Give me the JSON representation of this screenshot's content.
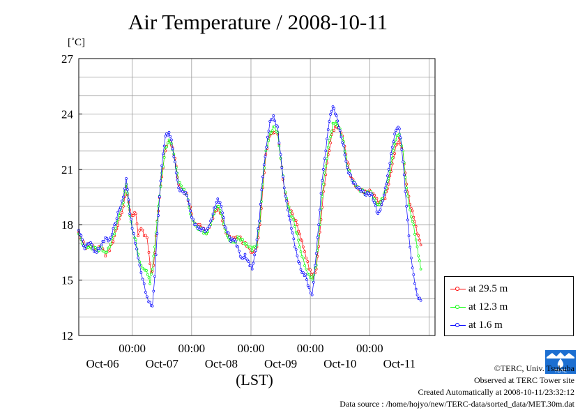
{
  "chart_data": {
    "type": "line",
    "title": "Air Temperature / 2008-10-11",
    "ylabel": "[˚C]",
    "xlabel": "(LST)",
    "ylim": [
      12,
      27
    ],
    "y_ticks": [
      12,
      15,
      18,
      21,
      24,
      27
    ],
    "x_unit": "days since Oct-06 00:00 (local)",
    "xlim": [
      -0.9,
      5.1
    ],
    "x_ticks": [
      {
        "x": 0,
        "time": "00:00",
        "date": "Oct-06"
      },
      {
        "x": 1,
        "time": "00:00",
        "date": "Oct-07"
      },
      {
        "x": 2,
        "time": "00:00",
        "date": "Oct-08"
      },
      {
        "x": 3,
        "time": "00:00",
        "date": "Oct-09"
      },
      {
        "x": 4,
        "time": "00:00",
        "date": "Oct-10"
      },
      {
        "x": 5,
        "time": "",
        "date": "Oct-11"
      }
    ],
    "grid": true,
    "legend_position": "right",
    "series": [
      {
        "name": "at 29.5 m",
        "color": "#ff0000",
        "points": [
          [
            -0.9,
            17.6
          ],
          [
            -0.8,
            16.8
          ],
          [
            -0.72,
            16.9
          ],
          [
            -0.6,
            16.6
          ],
          [
            -0.52,
            16.8
          ],
          [
            -0.45,
            16.3
          ],
          [
            -0.38,
            16.6
          ],
          [
            -0.3,
            17.4
          ],
          [
            -0.22,
            18.3
          ],
          [
            -0.15,
            19.0
          ],
          [
            -0.1,
            20.2
          ],
          [
            -0.04,
            18.8
          ],
          [
            0.0,
            18.5
          ],
          [
            0.06,
            18.6
          ],
          [
            0.1,
            17.4
          ],
          [
            0.15,
            17.8
          ],
          [
            0.2,
            17.4
          ],
          [
            0.25,
            17.3
          ],
          [
            0.28,
            16.5
          ],
          [
            0.32,
            15.4
          ],
          [
            0.36,
            15.8
          ],
          [
            0.42,
            18.2
          ],
          [
            0.5,
            20.6
          ],
          [
            0.56,
            22.0
          ],
          [
            0.62,
            22.5
          ],
          [
            0.66,
            22.3
          ],
          [
            0.72,
            21.6
          ],
          [
            0.78,
            20.2
          ],
          [
            0.85,
            19.9
          ],
          [
            0.92,
            19.7
          ],
          [
            1.0,
            18.6
          ],
          [
            1.05,
            18.1
          ],
          [
            1.1,
            18.0
          ],
          [
            1.18,
            17.8
          ],
          [
            1.25,
            17.5
          ],
          [
            1.32,
            18.0
          ],
          [
            1.38,
            18.6
          ],
          [
            1.44,
            19.0
          ],
          [
            1.5,
            18.6
          ],
          [
            1.56,
            17.8
          ],
          [
            1.6,
            17.5
          ],
          [
            1.66,
            17.2
          ],
          [
            1.72,
            17.2
          ],
          [
            1.8,
            17.3
          ],
          [
            1.88,
            17.0
          ],
          [
            1.95,
            16.8
          ],
          [
            2.02,
            16.5
          ],
          [
            2.1,
            16.8
          ],
          [
            2.15,
            18.0
          ],
          [
            2.2,
            20.0
          ],
          [
            2.25,
            21.8
          ],
          [
            2.32,
            22.8
          ],
          [
            2.4,
            23.0
          ],
          [
            2.45,
            22.9
          ],
          [
            2.5,
            21.6
          ],
          [
            2.56,
            20.0
          ],
          [
            2.62,
            19.2
          ],
          [
            2.7,
            18.6
          ],
          [
            2.78,
            18.0
          ],
          [
            2.82,
            17.5
          ],
          [
            2.88,
            16.8
          ],
          [
            2.93,
            16.2
          ],
          [
            2.98,
            15.6
          ],
          [
            3.04,
            15.1
          ],
          [
            3.1,
            15.6
          ],
          [
            3.16,
            17.6
          ],
          [
            3.22,
            19.8
          ],
          [
            3.3,
            21.8
          ],
          [
            3.38,
            23.1
          ],
          [
            3.44,
            23.3
          ],
          [
            3.5,
            23.1
          ],
          [
            3.56,
            22.5
          ],
          [
            3.62,
            21.4
          ],
          [
            3.7,
            20.5
          ],
          [
            3.78,
            20.1
          ],
          [
            3.86,
            19.9
          ],
          [
            3.94,
            19.8
          ],
          [
            4.02,
            19.8
          ],
          [
            4.08,
            19.6
          ],
          [
            4.14,
            19.2
          ],
          [
            4.2,
            19.1
          ],
          [
            4.26,
            19.4
          ],
          [
            4.32,
            20.2
          ],
          [
            4.38,
            21.3
          ],
          [
            4.44,
            22.3
          ],
          [
            4.5,
            22.7
          ],
          [
            4.56,
            22.0
          ],
          [
            4.62,
            20.2
          ],
          [
            4.68,
            19.1
          ],
          [
            4.74,
            18.4
          ],
          [
            4.8,
            17.5
          ],
          [
            4.86,
            16.9
          ]
        ]
      },
      {
        "name": "at 12.3 m",
        "color": "#00ff00",
        "points": [
          [
            -0.9,
            17.5
          ],
          [
            -0.8,
            16.8
          ],
          [
            -0.72,
            16.9
          ],
          [
            -0.6,
            16.6
          ],
          [
            -0.52,
            16.8
          ],
          [
            -0.45,
            16.5
          ],
          [
            -0.38,
            16.8
          ],
          [
            -0.3,
            17.5
          ],
          [
            -0.22,
            18.5
          ],
          [
            -0.15,
            19.2
          ],
          [
            -0.1,
            20.2
          ],
          [
            -0.04,
            18.5
          ],
          [
            0.0,
            17.8
          ],
          [
            0.06,
            17.2
          ],
          [
            0.1,
            16.4
          ],
          [
            0.15,
            15.8
          ],
          [
            0.2,
            15.6
          ],
          [
            0.26,
            15.3
          ],
          [
            0.3,
            14.8
          ],
          [
            0.34,
            15.6
          ],
          [
            0.38,
            16.8
          ],
          [
            0.44,
            19.0
          ],
          [
            0.5,
            20.8
          ],
          [
            0.56,
            22.2
          ],
          [
            0.62,
            22.6
          ],
          [
            0.66,
            22.4
          ],
          [
            0.72,
            21.4
          ],
          [
            0.78,
            20.3
          ],
          [
            0.85,
            19.9
          ],
          [
            0.92,
            19.6
          ],
          [
            1.0,
            18.4
          ],
          [
            1.05,
            18.1
          ],
          [
            1.1,
            17.9
          ],
          [
            1.18,
            17.7
          ],
          [
            1.25,
            17.5
          ],
          [
            1.32,
            18.0
          ],
          [
            1.38,
            18.6
          ],
          [
            1.44,
            19.0
          ],
          [
            1.5,
            18.6
          ],
          [
            1.56,
            17.8
          ],
          [
            1.6,
            17.4
          ],
          [
            1.66,
            17.2
          ],
          [
            1.72,
            17.1
          ],
          [
            1.8,
            17.3
          ],
          [
            1.88,
            17.0
          ],
          [
            1.95,
            16.8
          ],
          [
            2.02,
            16.6
          ],
          [
            2.1,
            16.9
          ],
          [
            2.15,
            18.2
          ],
          [
            2.2,
            20.2
          ],
          [
            2.25,
            22.0
          ],
          [
            2.32,
            23.0
          ],
          [
            2.4,
            23.3
          ],
          [
            2.45,
            23.0
          ],
          [
            2.5,
            21.6
          ],
          [
            2.56,
            20.0
          ],
          [
            2.62,
            19.0
          ],
          [
            2.7,
            18.4
          ],
          [
            2.78,
            17.5
          ],
          [
            2.82,
            16.8
          ],
          [
            2.88,
            16.2
          ],
          [
            2.93,
            15.6
          ],
          [
            2.98,
            15.3
          ],
          [
            3.04,
            15.0
          ],
          [
            3.1,
            15.8
          ],
          [
            3.16,
            18.0
          ],
          [
            3.22,
            20.2
          ],
          [
            3.3,
            22.2
          ],
          [
            3.38,
            23.5
          ],
          [
            3.44,
            23.6
          ],
          [
            3.5,
            23.2
          ],
          [
            3.56,
            22.5
          ],
          [
            3.62,
            21.2
          ],
          [
            3.7,
            20.4
          ],
          [
            3.78,
            20.0
          ],
          [
            3.86,
            19.8
          ],
          [
            3.94,
            19.7
          ],
          [
            4.02,
            19.8
          ],
          [
            4.08,
            19.4
          ],
          [
            4.14,
            19.1
          ],
          [
            4.2,
            19.4
          ],
          [
            4.26,
            19.8
          ],
          [
            4.32,
            20.5
          ],
          [
            4.38,
            21.6
          ],
          [
            4.44,
            22.6
          ],
          [
            4.5,
            22.9
          ],
          [
            4.56,
            22.0
          ],
          [
            4.62,
            20.0
          ],
          [
            4.68,
            18.8
          ],
          [
            4.74,
            18.0
          ],
          [
            4.8,
            16.8
          ],
          [
            4.86,
            15.6
          ]
        ]
      },
      {
        "name": "at 1.6 m",
        "color": "#0000ff",
        "points": [
          [
            -0.9,
            17.7
          ],
          [
            -0.8,
            16.7
          ],
          [
            -0.72,
            17.0
          ],
          [
            -0.6,
            16.5
          ],
          [
            -0.52,
            16.9
          ],
          [
            -0.45,
            17.3
          ],
          [
            -0.38,
            17.2
          ],
          [
            -0.3,
            18.0
          ],
          [
            -0.22,
            18.8
          ],
          [
            -0.15,
            19.5
          ],
          [
            -0.1,
            20.5
          ],
          [
            -0.04,
            18.6
          ],
          [
            0.0,
            17.8
          ],
          [
            0.05,
            17.0
          ],
          [
            0.1,
            16.2
          ],
          [
            0.15,
            15.4
          ],
          [
            0.2,
            14.8
          ],
          [
            0.25,
            14.1
          ],
          [
            0.3,
            13.8
          ],
          [
            0.34,
            13.6
          ],
          [
            0.38,
            15.2
          ],
          [
            0.44,
            18.5
          ],
          [
            0.5,
            21.2
          ],
          [
            0.56,
            22.8
          ],
          [
            0.62,
            23.0
          ],
          [
            0.66,
            22.6
          ],
          [
            0.72,
            21.4
          ],
          [
            0.78,
            20.0
          ],
          [
            0.85,
            19.8
          ],
          [
            0.92,
            19.6
          ],
          [
            1.0,
            18.4
          ],
          [
            1.05,
            18.0
          ],
          [
            1.1,
            17.8
          ],
          [
            1.18,
            17.8
          ],
          [
            1.25,
            17.7
          ],
          [
            1.32,
            18.2
          ],
          [
            1.38,
            18.9
          ],
          [
            1.44,
            19.4
          ],
          [
            1.5,
            19.0
          ],
          [
            1.56,
            17.9
          ],
          [
            1.6,
            17.6
          ],
          [
            1.66,
            17.1
          ],
          [
            1.72,
            17.2
          ],
          [
            1.78,
            16.8
          ],
          [
            1.84,
            16.2
          ],
          [
            1.9,
            16.4
          ],
          [
            1.96,
            16.0
          ],
          [
            2.02,
            15.6
          ],
          [
            2.08,
            16.6
          ],
          [
            2.14,
            18.2
          ],
          [
            2.2,
            20.6
          ],
          [
            2.26,
            22.2
          ],
          [
            2.32,
            23.6
          ],
          [
            2.38,
            23.9
          ],
          [
            2.45,
            23.3
          ],
          [
            2.5,
            21.8
          ],
          [
            2.56,
            20.0
          ],
          [
            2.62,
            18.8
          ],
          [
            2.68,
            17.8
          ],
          [
            2.74,
            16.8
          ],
          [
            2.8,
            16.0
          ],
          [
            2.86,
            15.4
          ],
          [
            2.92,
            15.3
          ],
          [
            2.98,
            14.6
          ],
          [
            3.03,
            14.2
          ],
          [
            3.08,
            15.8
          ],
          [
            3.14,
            18.0
          ],
          [
            3.2,
            20.4
          ],
          [
            3.26,
            22.0
          ],
          [
            3.32,
            23.6
          ],
          [
            3.38,
            24.4
          ],
          [
            3.44,
            23.9
          ],
          [
            3.5,
            23.1
          ],
          [
            3.56,
            22.3
          ],
          [
            3.62,
            21.1
          ],
          [
            3.7,
            20.4
          ],
          [
            3.78,
            20.0
          ],
          [
            3.86,
            19.8
          ],
          [
            3.94,
            19.6
          ],
          [
            4.02,
            19.7
          ],
          [
            4.08,
            19.2
          ],
          [
            4.14,
            18.6
          ],
          [
            4.2,
            19.1
          ],
          [
            4.26,
            20.0
          ],
          [
            4.32,
            21.0
          ],
          [
            4.38,
            22.2
          ],
          [
            4.44,
            23.1
          ],
          [
            4.5,
            23.2
          ],
          [
            4.56,
            21.4
          ],
          [
            4.62,
            19.0
          ],
          [
            4.66,
            17.4
          ],
          [
            4.7,
            16.2
          ],
          [
            4.74,
            15.3
          ],
          [
            4.8,
            14.2
          ],
          [
            4.86,
            13.9
          ]
        ]
      }
    ]
  },
  "legend": {
    "items": [
      {
        "label": "at 29.5 m",
        "color": "#ff0000"
      },
      {
        "label": "at 12.3 m",
        "color": "#00ff00"
      },
      {
        "label": "at 1.6 m",
        "color": "#0000ff"
      }
    ]
  },
  "footer": {
    "copyright": "©TERC, Univ. Tsukuba",
    "observed": "Observed at TERC Tower site",
    "created": "Created Automatically at 2008-10-11/23:32:12",
    "source": "Data source : /home/hojyo/new/TERC-data/sorted_data/MET.30m.dat"
  },
  "logo": {
    "text": "TERC",
    "color": "#1c6fd1"
  }
}
